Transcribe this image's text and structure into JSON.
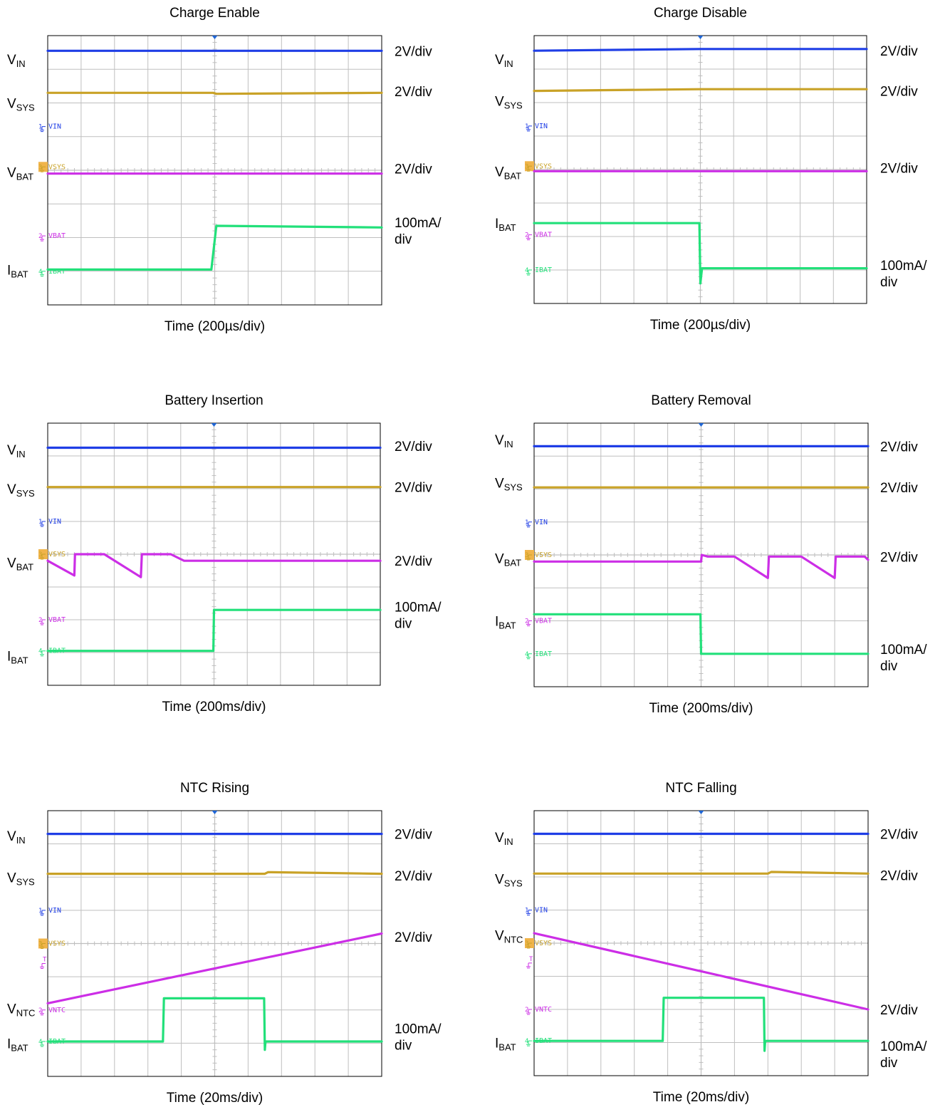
{
  "colors": {
    "vin": "#1f3ee6",
    "vsys": "#c9a227",
    "vbat": "#cc2ee6",
    "ibat": "#22e07a",
    "grid": "#bfbfbf",
    "frame": "#000000",
    "trigger": "#1f66d6",
    "marker_box": "#f0b44a"
  },
  "chart_data": [
    {
      "type": "line",
      "title": "Charge Enable",
      "xlabel": "Time (200µs/div)",
      "x_divisions": 10,
      "y_divisions": 8,
      "x_range_div": [
        0,
        10
      ],
      "y_range_div": [
        0,
        8
      ],
      "grid": true,
      "channel_markers": [
        {
          "number": "1",
          "label": "VIN",
          "channel": "vin",
          "level": 5.3
        },
        {
          "number": "3",
          "label": "VSYS",
          "channel": "vsys",
          "level": 4.1
        },
        {
          "number": "2",
          "label": "VBAT",
          "channel": "vbat",
          "level": 2.05
        },
        {
          "number": "4",
          "label": "IBAT",
          "channel": "ibat",
          "level": 1.0
        }
      ],
      "signal_labels": [
        {
          "main": "V",
          "sub": "IN",
          "level": 7.3
        },
        {
          "main": "V",
          "sub": "SYS",
          "level": 6.0
        },
        {
          "main": "V",
          "sub": "BAT",
          "level": 3.95
        },
        {
          "main": "I",
          "sub": "BAT",
          "level": 1.05
        }
      ],
      "scale_labels": [
        {
          "lines": [
            "2V/div"
          ],
          "level": 7.55
        },
        {
          "lines": [
            "2V/div"
          ],
          "level": 6.35
        },
        {
          "lines": [
            "2V/div"
          ],
          "level": 4.05
        },
        {
          "lines": [
            "100mA/",
            "div"
          ],
          "level": 2.45
        }
      ],
      "series": [
        {
          "channel": "vin",
          "x": [
            0,
            5,
            10
          ],
          "y": [
            7.55,
            7.55,
            7.55
          ]
        },
        {
          "channel": "vsys",
          "x": [
            0,
            4.95,
            5.05,
            10
          ],
          "y": [
            6.3,
            6.3,
            6.27,
            6.3
          ]
        },
        {
          "channel": "vbat",
          "x": [
            0,
            10
          ],
          "y": [
            3.9,
            3.9
          ]
        },
        {
          "channel": "ibat",
          "x": [
            0,
            4.9,
            5.05,
            10
          ],
          "y": [
            1.05,
            1.05,
            2.35,
            2.3
          ]
        }
      ]
    },
    {
      "type": "line",
      "title": "Charge Disable",
      "xlabel": "Time (200µs/div)",
      "x_divisions": 10,
      "y_divisions": 8,
      "x_range_div": [
        0,
        10
      ],
      "y_range_div": [
        0,
        8
      ],
      "grid": true,
      "channel_markers": [
        {
          "number": "1",
          "label": "VIN",
          "channel": "vin",
          "level": 5.3
        },
        {
          "number": "3",
          "label": "VSYS",
          "channel": "vsys",
          "level": 4.1
        },
        {
          "number": "2",
          "label": "VBAT",
          "channel": "vbat",
          "level": 2.05
        },
        {
          "number": "4",
          "label": "IBAT",
          "channel": "ibat",
          "level": 1.0
        }
      ],
      "signal_labels": [
        {
          "main": "V",
          "sub": "IN",
          "level": 7.3
        },
        {
          "main": "V",
          "sub": "SYS",
          "level": 6.05
        },
        {
          "main": "V",
          "sub": "BAT",
          "level": 3.95
        },
        {
          "main": "I",
          "sub": "BAT",
          "level": 2.4
        }
      ],
      "scale_labels": [
        {
          "lines": [
            "2V/div"
          ],
          "level": 7.55
        },
        {
          "lines": [
            "2V/div"
          ],
          "level": 6.35
        },
        {
          "lines": [
            "2V/div"
          ],
          "level": 4.05
        },
        {
          "lines": [
            "100mA/",
            "div"
          ],
          "level": 1.15
        }
      ],
      "series": [
        {
          "channel": "vin",
          "x": [
            0,
            5,
            10
          ],
          "y": [
            7.55,
            7.6,
            7.6
          ]
        },
        {
          "channel": "vsys",
          "x": [
            0,
            5,
            10
          ],
          "y": [
            6.35,
            6.4,
            6.4
          ]
        },
        {
          "channel": "vbat",
          "x": [
            0,
            10
          ],
          "y": [
            3.95,
            3.95
          ]
        },
        {
          "channel": "ibat",
          "x": [
            0,
            4.97,
            5.0,
            5.05,
            10
          ],
          "y": [
            2.4,
            2.4,
            0.6,
            1.05,
            1.05
          ]
        }
      ]
    },
    {
      "type": "line",
      "title": "Battery Insertion",
      "xlabel": "Time (200ms/div)",
      "x_divisions": 10,
      "y_divisions": 8,
      "x_range_div": [
        0,
        10
      ],
      "y_range_div": [
        0,
        8
      ],
      "grid": true,
      "channel_markers": [
        {
          "number": "1",
          "label": "VIN",
          "channel": "vin",
          "level": 5.0
        },
        {
          "number": "3",
          "label": "VSYS",
          "channel": "vsys",
          "level": 4.0
        },
        {
          "number": "2",
          "label": "VBAT",
          "channel": "vbat",
          "level": 2.0
        },
        {
          "number": "4",
          "label": "IBAT",
          "channel": "ibat",
          "level": 1.05
        }
      ],
      "signal_labels": [
        {
          "main": "V",
          "sub": "IN",
          "level": 7.2
        },
        {
          "main": "V",
          "sub": "SYS",
          "level": 6.0
        },
        {
          "main": "V",
          "sub": "BAT",
          "level": 3.75
        },
        {
          "main": "I",
          "sub": "BAT",
          "level": 0.9
        }
      ],
      "scale_labels": [
        {
          "lines": [
            "2V/div"
          ],
          "level": 7.3
        },
        {
          "lines": [
            "2V/div"
          ],
          "level": 6.05
        },
        {
          "lines": [
            "2V/div"
          ],
          "level": 3.8
        },
        {
          "lines": [
            "100mA/",
            "div"
          ],
          "level": 2.4
        }
      ],
      "series": [
        {
          "channel": "vin",
          "x": [
            0,
            10
          ],
          "y": [
            7.25,
            7.25
          ]
        },
        {
          "channel": "vsys",
          "x": [
            0,
            10
          ],
          "y": [
            6.05,
            6.05
          ]
        },
        {
          "channel": "vbat",
          "x": [
            0,
            0.8,
            0.82,
            1.7,
            2.8,
            2.83,
            3.7,
            4.1,
            10
          ],
          "y": [
            3.8,
            3.35,
            4.0,
            4.0,
            3.3,
            4.0,
            4.0,
            3.8,
            3.8
          ]
        },
        {
          "channel": "ibat",
          "x": [
            0,
            4.98,
            5.0,
            10
          ],
          "y": [
            1.05,
            1.05,
            2.3,
            2.3
          ]
        }
      ]
    },
    {
      "type": "line",
      "title": "Battery Removal",
      "xlabel": "Time (200ms/div)",
      "x_divisions": 10,
      "y_divisions": 8,
      "x_range_div": [
        0,
        10
      ],
      "y_range_div": [
        0,
        8
      ],
      "grid": true,
      "channel_markers": [
        {
          "number": "1",
          "label": "VIN",
          "channel": "vin",
          "level": 5.0
        },
        {
          "number": "3",
          "label": "VSYS",
          "channel": "vsys",
          "level": 4.0
        },
        {
          "number": "2",
          "label": "VBAT",
          "channel": "vbat",
          "level": 2.0
        },
        {
          "number": "4",
          "label": "IBAT",
          "channel": "ibat",
          "level": 1.0
        }
      ],
      "signal_labels": [
        {
          "main": "V",
          "sub": "IN",
          "level": 7.5
        },
        {
          "main": "V",
          "sub": "SYS",
          "level": 6.2
        },
        {
          "main": "V",
          "sub": "BAT",
          "level": 3.9
        },
        {
          "main": "I",
          "sub": "BAT",
          "level": 2.0
        }
      ],
      "scale_labels": [
        {
          "lines": [
            "2V/div"
          ],
          "level": 7.3
        },
        {
          "lines": [
            "2V/div"
          ],
          "level": 6.05
        },
        {
          "lines": [
            "2V/div"
          ],
          "level": 3.95
        },
        {
          "lines": [
            "100mA/",
            "div"
          ],
          "level": 1.15
        }
      ],
      "series": [
        {
          "channel": "vin",
          "x": [
            0,
            10
          ],
          "y": [
            7.3,
            7.3
          ]
        },
        {
          "channel": "vsys",
          "x": [
            0,
            10
          ],
          "y": [
            6.05,
            6.05
          ]
        },
        {
          "channel": "vbat",
          "x": [
            0,
            5.0,
            5.02,
            5.2,
            6.0,
            7.0,
            7.03,
            8.0,
            9.0,
            9.03,
            9.9,
            10
          ],
          "y": [
            3.8,
            3.8,
            4.0,
            3.95,
            3.95,
            3.3,
            3.95,
            3.95,
            3.3,
            3.95,
            3.95,
            3.85
          ]
        },
        {
          "channel": "ibat",
          "x": [
            0,
            4.98,
            5.0,
            10
          ],
          "y": [
            2.2,
            2.2,
            1.0,
            1.0
          ]
        }
      ]
    },
    {
      "type": "line",
      "title": "NTC Rising",
      "xlabel": "Time (20ms/div)",
      "x_divisions": 10,
      "y_divisions": 8,
      "x_range_div": [
        0,
        10
      ],
      "y_range_div": [
        0,
        8
      ],
      "grid": true,
      "channel_markers": [
        {
          "number": "1",
          "label": "VIN",
          "channel": "vin",
          "level": 5.0
        },
        {
          "number": "3",
          "label": "VSYS",
          "channel": "vsys",
          "level": 4.0
        },
        {
          "number": "",
          "label": "",
          "channel": "vbat",
          "level": 3.4
        },
        {
          "number": "2",
          "label": "VNTC",
          "channel": "vbat",
          "level": 2.0
        },
        {
          "number": "4",
          "label": "IBAT",
          "channel": "ibat",
          "level": 1.05
        }
      ],
      "signal_labels": [
        {
          "main": "V",
          "sub": "IN",
          "level": 7.25
        },
        {
          "main": "V",
          "sub": "SYS",
          "level": 6.0
        },
        {
          "main": "V",
          "sub": "NTC",
          "level": 2.05
        },
        {
          "main": "I",
          "sub": "BAT",
          "level": 1.0
        }
      ],
      "scale_labels": [
        {
          "lines": [
            "2V/div"
          ],
          "level": 7.3
        },
        {
          "lines": [
            "2V/div"
          ],
          "level": 6.05
        },
        {
          "lines": [
            "2V/div"
          ],
          "level": 4.2
        },
        {
          "lines": [
            "100mA/",
            "div"
          ],
          "level": 1.45
        }
      ],
      "series": [
        {
          "channel": "vin",
          "x": [
            0,
            10
          ],
          "y": [
            7.3,
            7.3
          ]
        },
        {
          "channel": "vsys",
          "x": [
            0,
            6.5,
            6.6,
            10
          ],
          "y": [
            6.1,
            6.1,
            6.15,
            6.1
          ]
        },
        {
          "channel": "vbat",
          "x": [
            0,
            10
          ],
          "y": [
            2.2,
            4.3
          ]
        },
        {
          "channel": "ibat",
          "x": [
            0,
            3.45,
            3.48,
            6.48,
            6.5,
            6.52,
            10
          ],
          "y": [
            1.05,
            1.05,
            2.35,
            2.35,
            0.8,
            1.05,
            1.05
          ]
        }
      ]
    },
    {
      "type": "line",
      "title": "NTC Falling",
      "xlabel": "Time (20ms/div)",
      "x_divisions": 10,
      "y_divisions": 8,
      "x_range_div": [
        0,
        10
      ],
      "y_range_div": [
        0,
        8
      ],
      "grid": true,
      "channel_markers": [
        {
          "number": "1",
          "label": "VIN",
          "channel": "vin",
          "level": 5.0
        },
        {
          "number": "3",
          "label": "VSYS",
          "channel": "vsys",
          "level": 4.0
        },
        {
          "number": "",
          "label": "",
          "channel": "vbat",
          "level": 3.4
        },
        {
          "number": "2",
          "label": "VNTC",
          "channel": "vbat",
          "level": 2.0
        },
        {
          "number": "4",
          "label": "IBAT",
          "channel": "ibat",
          "level": 1.05
        }
      ],
      "signal_labels": [
        {
          "main": "V",
          "sub": "IN",
          "level": 7.2
        },
        {
          "main": "V",
          "sub": "SYS",
          "level": 5.95
        },
        {
          "main": "V",
          "sub": "NTC",
          "level": 4.25
        },
        {
          "main": "I",
          "sub": "BAT",
          "level": 1.0
        }
      ],
      "scale_labels": [
        {
          "lines": [
            "2V/div"
          ],
          "level": 7.3
        },
        {
          "lines": [
            "2V/div"
          ],
          "level": 6.05
        },
        {
          "lines": [
            "2V/div"
          ],
          "level": 2.0
        },
        {
          "lines": [
            "100mA/",
            "div"
          ],
          "level": 0.9
        }
      ],
      "series": [
        {
          "channel": "vin",
          "x": [
            0,
            10
          ],
          "y": [
            7.3,
            7.3
          ]
        },
        {
          "channel": "vsys",
          "x": [
            0,
            7.0,
            7.1,
            10
          ],
          "y": [
            6.1,
            6.1,
            6.15,
            6.1
          ]
        },
        {
          "channel": "vbat",
          "x": [
            0,
            10
          ],
          "y": [
            4.3,
            2.0
          ]
        },
        {
          "channel": "ibat",
          "x": [
            0,
            3.85,
            3.88,
            6.88,
            6.9,
            6.92,
            10
          ],
          "y": [
            1.05,
            1.05,
            2.35,
            2.35,
            0.75,
            1.05,
            1.05
          ]
        }
      ]
    }
  ]
}
